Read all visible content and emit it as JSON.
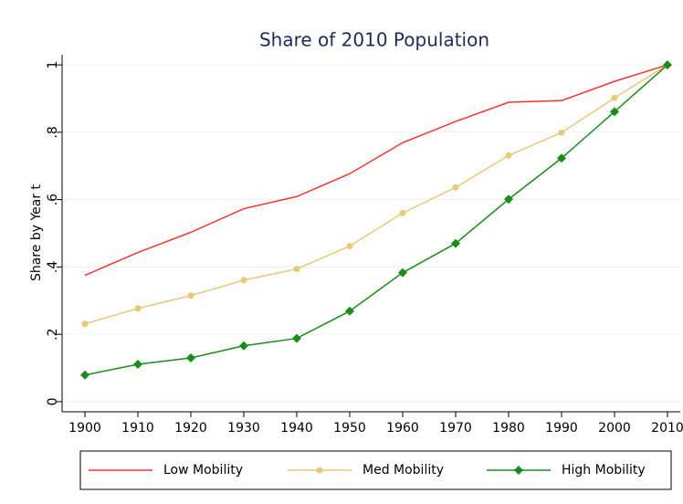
{
  "chart_data": {
    "type": "line",
    "title": "Share of 2010 Population",
    "y_label": "Share by Year t",
    "x": [
      1900,
      1910,
      1920,
      1930,
      1940,
      1950,
      1960,
      1970,
      1980,
      1990,
      2000,
      2010
    ],
    "series": [
      {
        "name": "Low Mobility",
        "color": "#ff3030",
        "marker": "none",
        "values": [
          0.375,
          0.443,
          0.503,
          0.573,
          0.609,
          0.677,
          0.769,
          0.832,
          0.889,
          0.894,
          0.951,
          1
        ]
      },
      {
        "name": "Med Mobility",
        "color": "#e8c87a",
        "marker": "circle",
        "values": [
          0.231,
          0.277,
          0.315,
          0.361,
          0.394,
          0.462,
          0.56,
          0.636,
          0.731,
          0.799,
          0.902,
          1
        ]
      },
      {
        "name": "High Mobility",
        "color": "#1a8c1a",
        "marker": "diamond",
        "values": [
          0.079,
          0.111,
          0.13,
          0.166,
          0.188,
          0.269,
          0.383,
          0.47,
          0.601,
          0.723,
          0.861,
          1
        ]
      }
    ],
    "xlim": [
      1900,
      2010
    ],
    "xticks": [
      1900,
      1910,
      1920,
      1930,
      1940,
      1950,
      1960,
      1970,
      1980,
      1990,
      2000,
      2010
    ],
    "ylim": [
      -0.03,
      1.03
    ],
    "yticks": [
      0,
      {
        "value": 0.2,
        "label": ".2"
      },
      {
        "value": 0.4,
        "label": ".4"
      },
      {
        "value": 0.6,
        "label": ".6"
      },
      {
        "value": 0.8,
        "label": ".8"
      },
      1
    ],
    "grid": true,
    "legend_position": "bottom"
  }
}
